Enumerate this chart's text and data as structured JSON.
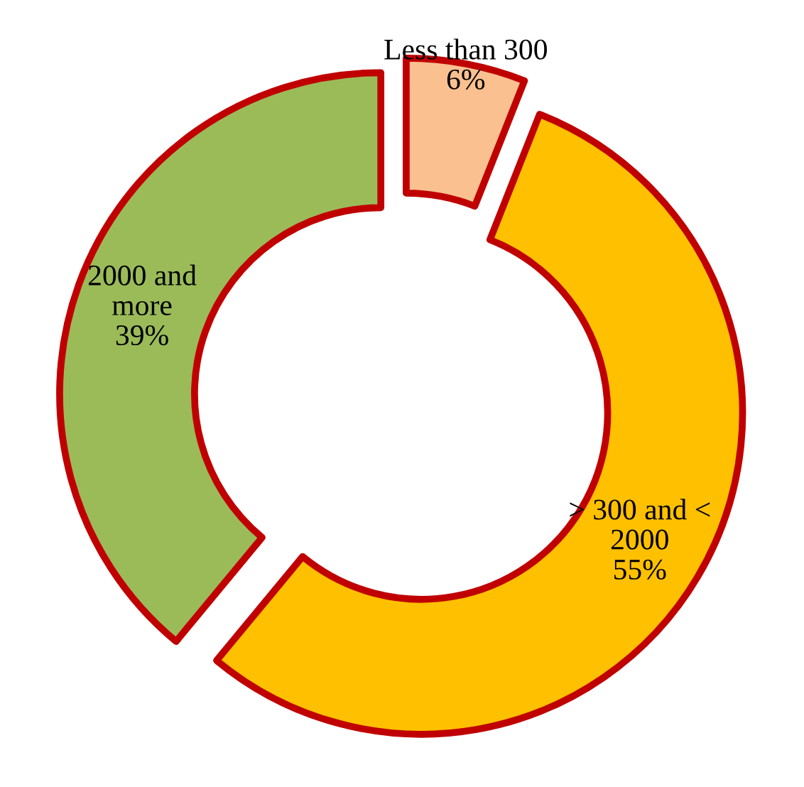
{
  "chart_data": {
    "type": "donut",
    "categories": [
      "Less than 300",
      "> 300 and <\n2000",
      "2000 and\nmore"
    ],
    "values": [
      6,
      55,
      39
    ],
    "value_labels": [
      "6%",
      "55%",
      "39%"
    ],
    "colors": [
      "#fac090",
      "#ffc000",
      "#9bbb59"
    ],
    "legend": false
  }
}
